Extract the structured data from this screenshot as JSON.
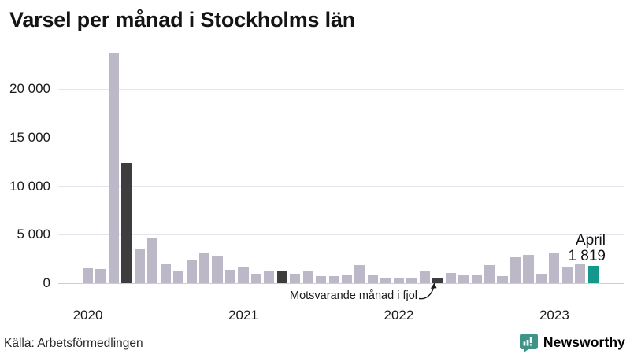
{
  "header": {
    "title": "Varsel per månad i Stockholms län"
  },
  "chart_data": {
    "type": "bar",
    "title": "Varsel per månad i Stockholms län",
    "categories": [
      "jan 2020",
      "feb 2020",
      "mar 2020",
      "apr 2020",
      "maj 2020",
      "jun 2020",
      "jul 2020",
      "aug 2020",
      "sep 2020",
      "okt 2020",
      "nov 2020",
      "dec 2020",
      "jan 2021",
      "feb 2021",
      "mar 2021",
      "apr 2021",
      "maj 2021",
      "jun 2021",
      "jul 2021",
      "aug 2021",
      "sep 2021",
      "okt 2021",
      "nov 2021",
      "dec 2021",
      "jan 2022",
      "feb 2022",
      "mar 2022",
      "apr 2022",
      "maj 2022",
      "jun 2022",
      "jul 2022",
      "aug 2022",
      "sep 2022",
      "okt 2022",
      "nov 2022",
      "dec 2022",
      "jan 2023",
      "feb 2023",
      "mar 2023",
      "apr 2023"
    ],
    "values": [
      1580,
      1450,
      23700,
      12400,
      3550,
      4650,
      2000,
      1200,
      2450,
      3100,
      2800,
      1400,
      1700,
      950,
      1200,
      1200,
      950,
      1200,
      760,
      760,
      810,
      1840,
      810,
      460,
      540,
      590,
      1210,
      520,
      1080,
      870,
      890,
      1850,
      730,
      2650,
      2890,
      1000,
      3100,
      1620,
      1970,
      1819
    ],
    "roles": [
      "normal",
      "normal",
      "normal",
      "dark",
      "normal",
      "normal",
      "normal",
      "normal",
      "normal",
      "normal",
      "normal",
      "normal",
      "normal",
      "normal",
      "normal",
      "dark",
      "normal",
      "normal",
      "normal",
      "normal",
      "normal",
      "normal",
      "normal",
      "normal",
      "normal",
      "normal",
      "normal",
      "dark",
      "normal",
      "normal",
      "normal",
      "normal",
      "normal",
      "normal",
      "normal",
      "normal",
      "normal",
      "normal",
      "normal",
      "highlight"
    ],
    "xlabel": "",
    "ylabel": "",
    "ylim": [
      0,
      24500
    ],
    "grid": "horizontal",
    "legend": "none",
    "y_axis": {
      "ticks": [
        0,
        5000,
        10000,
        15000,
        20000
      ],
      "tick_labels": [
        "0",
        "5 000",
        "10 000",
        "15 000",
        "20 000"
      ]
    },
    "x_axis": {
      "year_labels": [
        {
          "text": "2020",
          "month_index": 0
        },
        {
          "text": "2021",
          "month_index": 12
        },
        {
          "text": "2022",
          "month_index": 24
        },
        {
          "text": "2023",
          "month_index": 36
        }
      ]
    },
    "annotation": {
      "text": "Motsvarande månad i fjol",
      "points_to_index": 27
    },
    "highlight_label": {
      "line1": "April",
      "line2": "1 819",
      "index": 39
    }
  },
  "colors": {
    "bar_normal": "#bcb8c8",
    "bar_dark": "#3d3d3f",
    "bar_highlight": "#14988b",
    "grid": "#e6e4ee",
    "baseline": "#cfccd8",
    "brand_teal": "#3e9489"
  },
  "footer": {
    "source": "Källa: Arbetsförmedlingen",
    "brand_name": "Newsworthy",
    "brand_icon": "bar-chart-speech-bubble-icon"
  }
}
